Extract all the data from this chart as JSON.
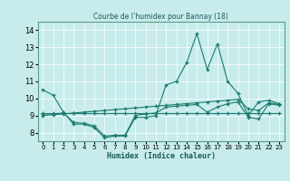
{
  "title": "Courbe de l’humidex pour Bannay (18)",
  "xlabel": "Humidex (Indice chaleur)",
  "bg_color": "#c8ecec",
  "line_color": "#1a7a6e",
  "xlim": [
    -0.5,
    23.5
  ],
  "ylim": [
    7.5,
    14.5
  ],
  "yticks": [
    8,
    9,
    10,
    11,
    12,
    13,
    14
  ],
  "xticks": [
    0,
    1,
    2,
    3,
    4,
    5,
    6,
    7,
    8,
    9,
    10,
    11,
    12,
    13,
    14,
    15,
    16,
    17,
    18,
    19,
    20,
    21,
    22,
    23
  ],
  "series": {
    "line1": {
      "x": [
        0,
        1,
        2,
        3,
        4,
        5,
        6,
        7,
        8,
        9,
        10,
        11,
        12,
        13,
        14,
        15,
        16,
        17,
        18,
        19,
        20,
        21,
        22,
        23
      ],
      "y": [
        10.5,
        10.2,
        9.2,
        8.5,
        8.5,
        8.3,
        7.7,
        7.8,
        7.8,
        8.9,
        8.9,
        9.0,
        10.8,
        11.0,
        12.1,
        13.8,
        11.7,
        13.2,
        11.0,
        10.3,
        9.0,
        9.8,
        9.9,
        9.7
      ]
    },
    "line2": {
      "x": [
        0,
        1,
        2,
        3,
        4,
        5,
        6,
        7,
        8,
        9,
        10,
        11,
        12,
        13,
        14,
        15,
        16,
        17,
        18,
        19,
        20,
        21,
        22,
        23
      ],
      "y": [
        9.15,
        9.15,
        9.15,
        9.15,
        9.15,
        9.15,
        9.15,
        9.15,
        9.15,
        9.15,
        9.15,
        9.15,
        9.15,
        9.15,
        9.15,
        9.15,
        9.15,
        9.15,
        9.15,
        9.15,
        9.15,
        9.15,
        9.15,
        9.15
      ]
    },
    "line3": {
      "x": [
        0,
        1,
        2,
        3,
        4,
        5,
        6,
        7,
        8,
        9,
        10,
        11,
        12,
        13,
        14,
        15,
        16,
        17,
        18,
        19,
        20,
        21,
        22,
        23
      ],
      "y": [
        9.0,
        9.05,
        9.1,
        9.15,
        9.2,
        9.25,
        9.3,
        9.35,
        9.4,
        9.45,
        9.5,
        9.55,
        9.6,
        9.65,
        9.7,
        9.75,
        9.8,
        9.85,
        9.9,
        9.95,
        9.4,
        9.3,
        9.75,
        9.65
      ]
    },
    "line4": {
      "x": [
        0,
        1,
        2,
        3,
        4,
        5,
        6,
        7,
        8,
        9,
        10,
        11,
        12,
        13,
        14,
        15,
        16,
        17,
        18,
        19,
        20,
        21,
        22,
        23
      ],
      "y": [
        9.1,
        9.1,
        9.15,
        8.6,
        8.55,
        8.4,
        7.8,
        7.85,
        7.85,
        9.0,
        9.1,
        9.15,
        9.5,
        9.55,
        9.6,
        9.65,
        9.2,
        9.5,
        9.7,
        9.8,
        8.9,
        8.8,
        9.7,
        9.6
      ]
    }
  }
}
